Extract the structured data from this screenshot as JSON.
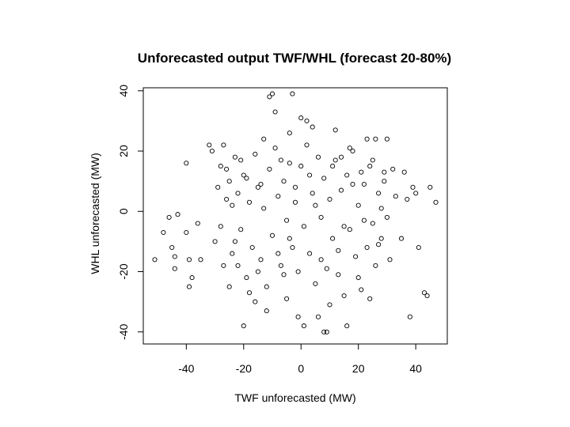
{
  "chart_data": {
    "type": "scatter",
    "title": "Unforecasted output TWF/WHL (forecast 20-80%)",
    "xlabel": "TWF unforecasted (MW)",
    "ylabel": "WHL unforecasted (MW)",
    "xlim": [
      -55,
      51
    ],
    "ylim": [
      -44,
      41
    ],
    "x_ticks": [
      -40,
      -20,
      0,
      20,
      40
    ],
    "y_ticks": [
      -40,
      -20,
      0,
      20,
      40
    ],
    "x_tick_labels": [
      "-40",
      "-20",
      "0",
      "20",
      "40"
    ],
    "y_tick_labels": [
      "-40",
      "-20",
      "0",
      "20",
      "40"
    ],
    "marker": "open-circle",
    "point_color": "#000000",
    "grid": false,
    "legend": "none",
    "points": [
      [
        -51,
        -16
      ],
      [
        -48,
        -7
      ],
      [
        -46,
        -2
      ],
      [
        -45,
        -12
      ],
      [
        -44,
        -15
      ],
      [
        -44,
        -19
      ],
      [
        -43,
        -1
      ],
      [
        -40,
        16
      ],
      [
        -40,
        -7
      ],
      [
        -39,
        -16
      ],
      [
        -39,
        -25
      ],
      [
        -38,
        -22
      ],
      [
        -36,
        -4
      ],
      [
        -35,
        -16
      ],
      [
        -32,
        22
      ],
      [
        -31,
        20
      ],
      [
        -29,
        8
      ],
      [
        -28,
        -5
      ],
      [
        -27,
        22
      ],
      [
        -26,
        14
      ],
      [
        -25,
        -25
      ],
      [
        -24,
        2
      ],
      [
        -23,
        -10
      ],
      [
        -22,
        -18
      ],
      [
        -21,
        17
      ],
      [
        -20,
        -38
      ],
      [
        -19,
        11
      ],
      [
        -18,
        -27
      ],
      [
        -16,
        -30
      ],
      [
        -15,
        -20
      ],
      [
        -14,
        9
      ],
      [
        -13,
        24
      ],
      [
        -12,
        -33
      ],
      [
        -11,
        38
      ],
      [
        -10,
        39
      ],
      [
        -9,
        33
      ],
      [
        -8,
        -14
      ],
      [
        -7,
        17
      ],
      [
        -6,
        -21
      ],
      [
        -5,
        -29
      ],
      [
        -4,
        26
      ],
      [
        -4,
        -9
      ],
      [
        -3,
        39
      ],
      [
        -2,
        3
      ],
      [
        -1,
        -35
      ],
      [
        0,
        31
      ],
      [
        1,
        -38
      ],
      [
        2,
        30
      ],
      [
        3,
        12
      ],
      [
        4,
        28
      ],
      [
        5,
        2
      ],
      [
        6,
        -35
      ],
      [
        7,
        -16
      ],
      [
        8,
        -40
      ],
      [
        9,
        -40
      ],
      [
        10,
        -31
      ],
      [
        11,
        15
      ],
      [
        12,
        27
      ],
      [
        13,
        -13
      ],
      [
        14,
        18
      ],
      [
        15,
        -5
      ],
      [
        16,
        -38
      ],
      [
        17,
        21
      ],
      [
        18,
        9
      ],
      [
        20,
        -22
      ],
      [
        21,
        13
      ],
      [
        22,
        -3
      ],
      [
        23,
        24
      ],
      [
        24,
        -29
      ],
      [
        25,
        17
      ],
      [
        26,
        24
      ],
      [
        27,
        -11
      ],
      [
        28,
        1
      ],
      [
        29,
        10
      ],
      [
        30,
        24
      ],
      [
        31,
        -16
      ],
      [
        32,
        14
      ],
      [
        33,
        5
      ],
      [
        35,
        -9
      ],
      [
        36,
        13
      ],
      [
        37,
        4
      ],
      [
        38,
        -35
      ],
      [
        39,
        8
      ],
      [
        40,
        6
      ],
      [
        41,
        -12
      ],
      [
        43,
        -27
      ],
      [
        44,
        -28
      ],
      [
        45,
        8
      ],
      [
        47,
        3
      ],
      [
        -30,
        -10
      ],
      [
        -28,
        15
      ],
      [
        -27,
        -18
      ],
      [
        -26,
        4
      ],
      [
        -25,
        10
      ],
      [
        -24,
        -14
      ],
      [
        -23,
        18
      ],
      [
        -22,
        6
      ],
      [
        -21,
        -6
      ],
      [
        -20,
        12
      ],
      [
        -19,
        -22
      ],
      [
        -18,
        3
      ],
      [
        -17,
        -12
      ],
      [
        -16,
        19
      ],
      [
        -15,
        8
      ],
      [
        -14,
        -16
      ],
      [
        -13,
        1
      ],
      [
        -12,
        -25
      ],
      [
        -11,
        14
      ],
      [
        -10,
        -8
      ],
      [
        -9,
        21
      ],
      [
        -8,
        5
      ],
      [
        -7,
        -18
      ],
      [
        -6,
        10
      ],
      [
        -5,
        -3
      ],
      [
        -4,
        16
      ],
      [
        -3,
        -12
      ],
      [
        -2,
        8
      ],
      [
        -1,
        -20
      ],
      [
        0,
        15
      ],
      [
        1,
        -5
      ],
      [
        2,
        22
      ],
      [
        3,
        -14
      ],
      [
        4,
        6
      ],
      [
        5,
        -24
      ],
      [
        6,
        18
      ],
      [
        7,
        -2
      ],
      [
        8,
        11
      ],
      [
        9,
        -19
      ],
      [
        10,
        4
      ],
      [
        11,
        -9
      ],
      [
        12,
        17
      ],
      [
        13,
        -21
      ],
      [
        14,
        7
      ],
      [
        15,
        -28
      ],
      [
        16,
        12
      ],
      [
        17,
        -6
      ],
      [
        18,
        20
      ],
      [
        19,
        -15
      ],
      [
        20,
        2
      ],
      [
        21,
        -26
      ],
      [
        22,
        9
      ],
      [
        23,
        -12
      ],
      [
        24,
        15
      ],
      [
        25,
        -4
      ],
      [
        26,
        -18
      ],
      [
        27,
        6
      ],
      [
        28,
        -9
      ],
      [
        29,
        13
      ],
      [
        30,
        -2
      ]
    ]
  }
}
